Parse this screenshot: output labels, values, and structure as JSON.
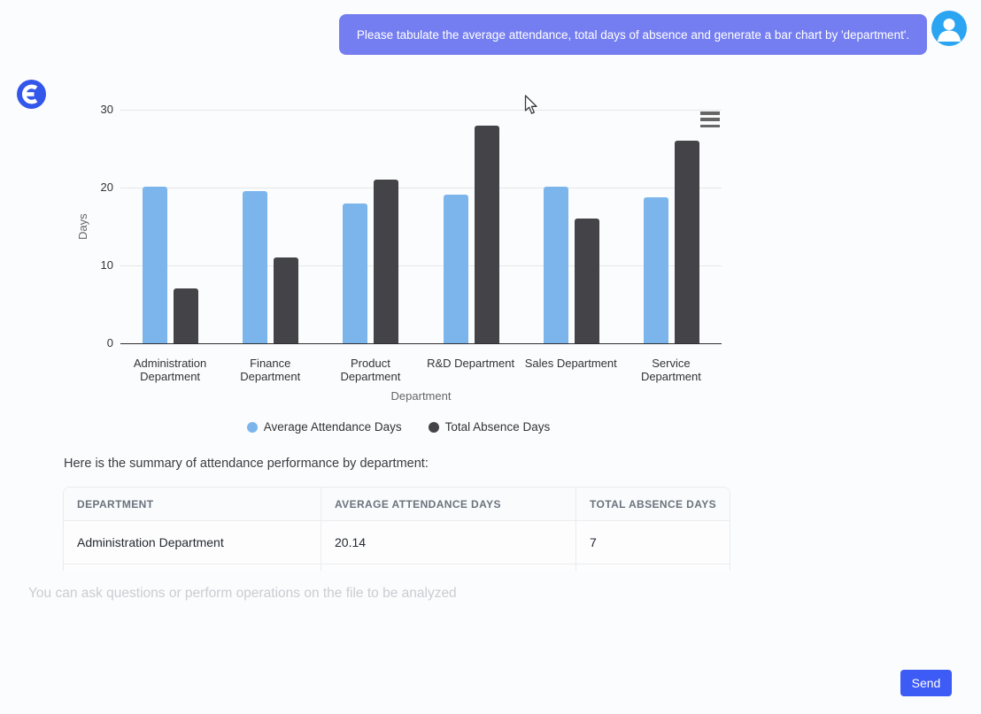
{
  "assistant": {
    "logo_color": "#3356eb"
  },
  "user_message": {
    "text": "Please tabulate the average attendance, total days of absence and generate a bar chart by 'department'.",
    "bubble_color": "#757ef0",
    "avatar_color": "#2ba5f2"
  },
  "chart_data": {
    "type": "bar",
    "title": "",
    "categories": [
      "Administration Department",
      "Finance Department",
      "Product Department",
      "R&D Department",
      "Sales Department",
      "Service Department"
    ],
    "series": [
      {
        "name": "Average Attendance Days",
        "color": "#7cb5ec",
        "values": [
          20.14,
          19.5,
          18.0,
          19.1,
          20.1,
          18.7
        ]
      },
      {
        "name": "Total Absence Days",
        "color": "#434348",
        "values": [
          7,
          11,
          21,
          28,
          16,
          26
        ]
      }
    ],
    "xlabel": "Department",
    "ylabel": "Days",
    "ylim": [
      0,
      30
    ],
    "yticks": [
      0,
      10,
      20,
      30
    ],
    "grid": true,
    "legend_position": "bottom",
    "menu_icon": "hamburger-icon"
  },
  "summary": {
    "text": "Here is the summary of attendance performance by department:"
  },
  "table": {
    "headers": [
      "DEPARTMENT",
      "AVERAGE ATTENDANCE DAYS",
      "TOTAL ABSENCE DAYS"
    ],
    "rows": [
      [
        "Administration Department",
        "20.14",
        "7"
      ]
    ]
  },
  "composer": {
    "placeholder": "You can ask questions or perform operations on the file to be analyzed",
    "send_label": "Send",
    "send_color": "#3d5bf5"
  }
}
